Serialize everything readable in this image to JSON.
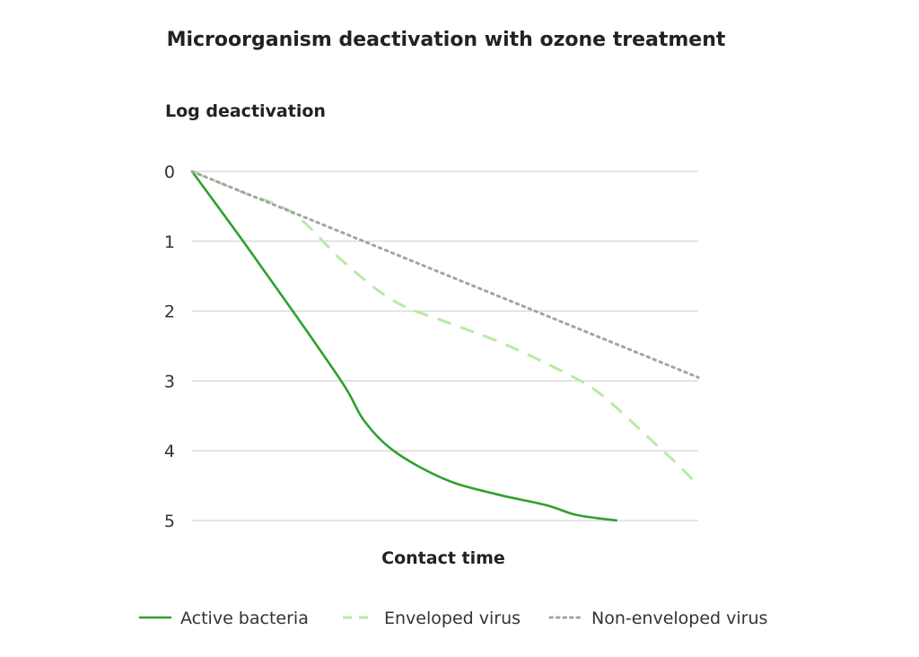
{
  "chart_data": {
    "type": "line",
    "title": "Microorganism deactivation with ozone treatment",
    "ylabel": "Log deactivation",
    "xlabel": "Contact time",
    "ylim": [
      0,
      5
    ],
    "y_inverted": true,
    "y_ticks": [
      "0",
      "1",
      "2",
      "3",
      "4",
      "5"
    ],
    "grid": true,
    "legend_position": "bottom",
    "series": [
      {
        "name": "Active bacteria",
        "style": "solid",
        "color": "#2ea12e",
        "x": [
          0,
          0.1,
          0.2,
          0.3,
          0.34,
          0.4,
          0.5,
          0.6,
          0.7,
          0.76,
          0.84
        ],
        "y": [
          0,
          0.99,
          2.01,
          3.06,
          3.57,
          4.01,
          4.41,
          4.62,
          4.78,
          4.92,
          5.0
        ]
      },
      {
        "name": "Enveloped virus",
        "style": "dashed",
        "color": "#b9e9a8",
        "x": [
          0,
          0.1,
          0.2,
          0.3,
          0.4,
          0.5,
          0.6,
          0.7,
          0.8,
          0.9,
          0.96,
          1.0
        ],
        "y": [
          0,
          0.3,
          0.6,
          1.3,
          1.86,
          2.15,
          2.42,
          2.75,
          3.15,
          3.8,
          4.2,
          4.5
        ]
      },
      {
        "name": "Non-enveloped virus",
        "style": "dotted",
        "color": "#a4a4a4",
        "x": [
          0,
          1.0
        ],
        "y": [
          0,
          2.95
        ]
      }
    ]
  }
}
